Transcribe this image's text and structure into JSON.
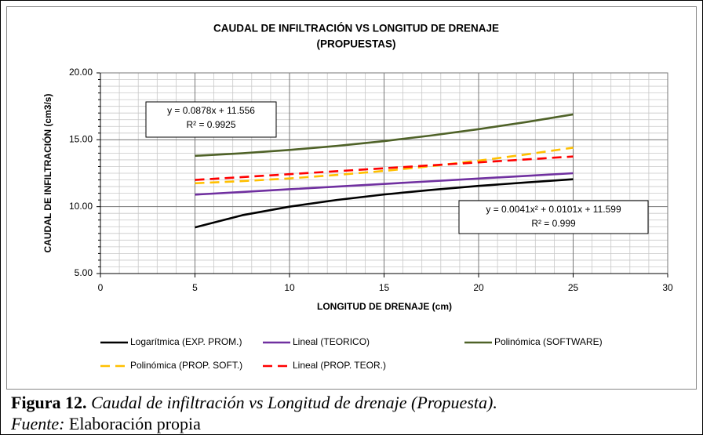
{
  "chart_data": {
    "type": "line",
    "title": [
      "CAUDAL DE INFILTRACIÓN VS LONGITUD DE DRENAJE",
      "(PROPUESTAS)"
    ],
    "x_label": "LONGITUD DE DRENAJE (cm)",
    "y_label": "CAUDAL DE INFILTRACIÓN (cm3/s)",
    "x": [
      5,
      7.5,
      10,
      12.5,
      15,
      17.5,
      20,
      22.5,
      25
    ],
    "series": [
      {
        "name": "Logarítmica (EXP. PROM.)",
        "color": "#000000",
        "dashed": false,
        "values": [
          8.45,
          9.36,
          10.0,
          10.5,
          10.91,
          11.25,
          11.55,
          11.81,
          12.05
        ]
      },
      {
        "name": "Lineal (TEORICO)",
        "color": "#7030a0",
        "dashed": false,
        "values": [
          10.9,
          11.1,
          11.3,
          11.5,
          11.7,
          11.9,
          12.1,
          12.3,
          12.5
        ]
      },
      {
        "name": "Polinómica (SOFTWARE)",
        "color": "#4f6228",
        "dashed": false,
        "values": [
          13.8,
          13.99,
          14.24,
          14.54,
          14.9,
          15.32,
          15.79,
          16.32,
          16.9
        ]
      },
      {
        "name": "Polinómica (PROP. SOFT.)",
        "color": "#ffc000",
        "dashed": true,
        "values": [
          11.75,
          11.91,
          12.11,
          12.37,
          12.67,
          13.03,
          13.44,
          13.9,
          14.41
        ]
      },
      {
        "name": "Lineal (PROP. TEOR.)",
        "color": "#ff0000",
        "dashed": true,
        "values": [
          12.0,
          12.21,
          12.43,
          12.65,
          12.87,
          13.09,
          13.31,
          13.53,
          13.75
        ]
      }
    ],
    "xlim": [
      0,
      30
    ],
    "xticks": [
      0,
      5,
      10,
      15,
      20,
      25,
      30
    ],
    "ylim": [
      5,
      20
    ],
    "yticks": [
      {
        "value": 5,
        "label": "5.00"
      },
      {
        "value": 10,
        "label": "10.00"
      },
      {
        "value": 15,
        "label": "15.00"
      },
      {
        "value": 20,
        "label": "20.00"
      }
    ],
    "x_minor_ticks": [
      1,
      2,
      3,
      4,
      6,
      7,
      8,
      9,
      11,
      12,
      13,
      14,
      16,
      17,
      18,
      19,
      21,
      22,
      23,
      24,
      26,
      27,
      28,
      29
    ],
    "y_minor_ticks": [
      5.5,
      6,
      6.5,
      7,
      7.5,
      8,
      8.5,
      9,
      9.5,
      10.5,
      11,
      11.5,
      12,
      12.5,
      13,
      13.5,
      14,
      14.5,
      15.5,
      16,
      16.5,
      17,
      17.5,
      18,
      18.5,
      19,
      19.5
    ],
    "grid": true,
    "annotations": [
      {
        "lines": [
          "y = 0.0878x + 11.556",
          "R² = 0.9925"
        ]
      },
      {
        "lines": [
          "y = 0.0041x² + 0.0101x + 11.599",
          "R² = 0.999"
        ]
      }
    ]
  },
  "caption": {
    "label": "Figura 12.",
    "text": "Caudal de infiltración vs Longitud de drenaje (Propuesta).",
    "source_label": "Fuente:",
    "source": "Elaboración propia"
  }
}
